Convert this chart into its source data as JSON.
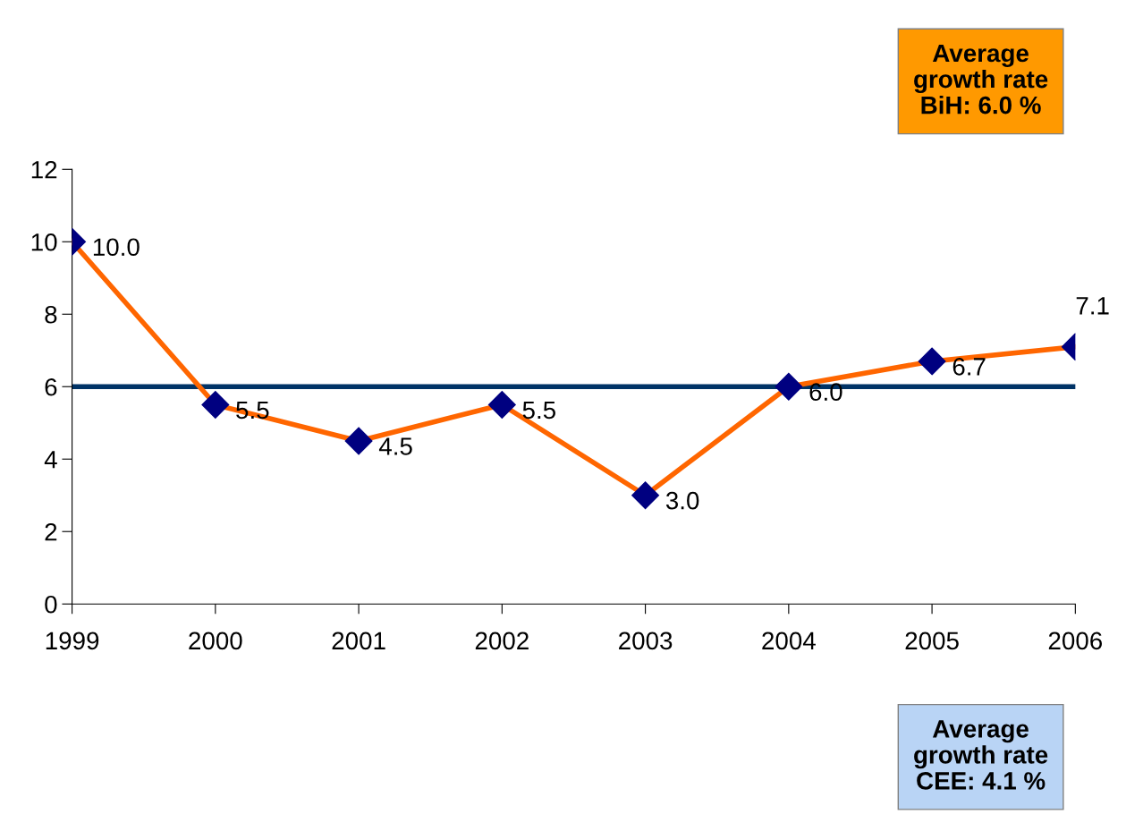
{
  "chart_data": {
    "type": "line",
    "categories": [
      "1999",
      "2000",
      "2001",
      "2002",
      "2003",
      "2004",
      "2005",
      "2006"
    ],
    "series": [
      {
        "color": "#ff6600",
        "values": [
          10.0,
          5.5,
          4.5,
          5.5,
          3.0,
          6.0,
          6.7,
          7.1
        ],
        "value_labels": [
          "10.0",
          "5.5",
          "4.5",
          "5.5",
          "3.0",
          "6.0",
          "6.7",
          "7.1"
        ]
      }
    ],
    "marker": "diamond",
    "ylim": [
      0,
      12
    ],
    "yticks": [
      0,
      2,
      4,
      6,
      8,
      10,
      12
    ],
    "grid": false,
    "legend": false,
    "ref_lines": [
      {
        "axis": "y",
        "value": 6.0,
        "color": "#003366"
      }
    ],
    "annotations": [
      "Average growth rate BiH: 6.0 %",
      "Average growth rate CEE: 4.1 %"
    ]
  }
}
